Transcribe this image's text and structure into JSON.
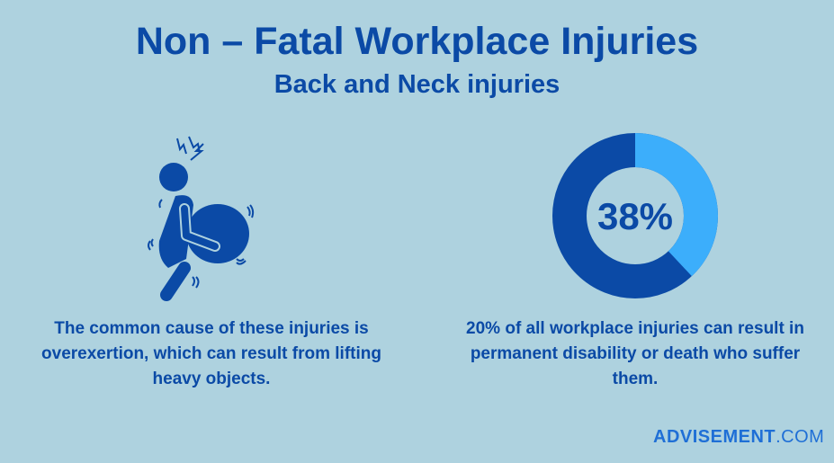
{
  "title": "Non – Fatal Workplace Injuries",
  "subtitle": "Back and Neck injuries",
  "left_caption": "The common cause of these injuries is overexertion, which can result from lifting heavy objects.",
  "right_caption": "20% of all workplace injuries can result in permanent disability or death who suffer them.",
  "icon": "person-lifting-heavy-object-back-pain-icon",
  "logo": {
    "brand": "ADVISEMENT",
    "suffix": ".COM"
  },
  "colors": {
    "background": "#aed2df",
    "primary": "#0b4aa6",
    "accent": "#3caefb"
  },
  "chart_data": {
    "type": "pie",
    "donut": true,
    "values": [
      38,
      62
    ],
    "center_label": "38%"
  }
}
